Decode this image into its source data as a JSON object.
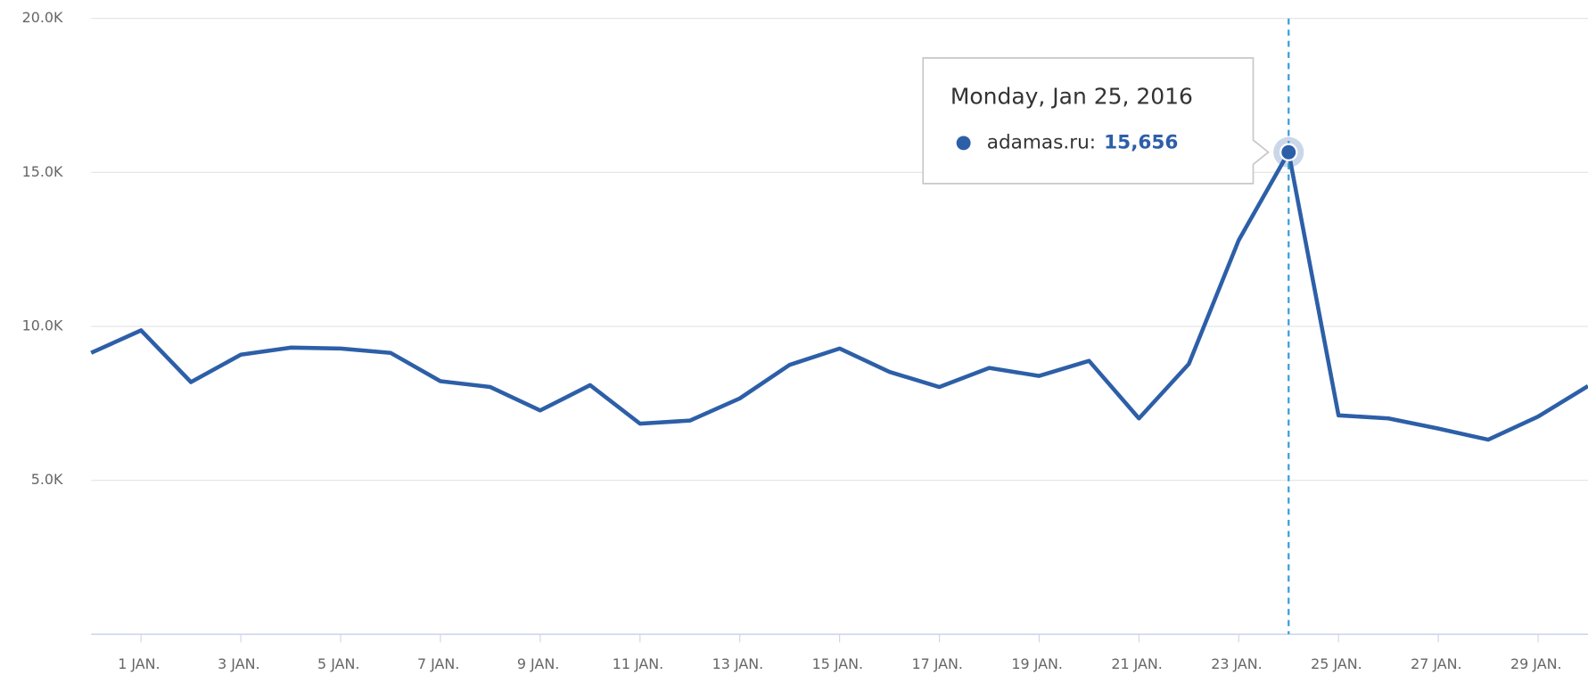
{
  "chart_data": {
    "type": "line",
    "categories": [
      null,
      "1 JAN.",
      null,
      "3 JAN.",
      null,
      "5 JAN.",
      null,
      "7 JAN.",
      null,
      "9 JAN.",
      null,
      "11 JAN.",
      null,
      "13 JAN.",
      null,
      "15 JAN.",
      null,
      "17 JAN.",
      null,
      "19 JAN.",
      null,
      "21 JAN.",
      null,
      "23 JAN.",
      null,
      "25 JAN.",
      null,
      "27 JAN.",
      null,
      "29 JAN.",
      null
    ],
    "series": [
      {
        "name": "adamas.ru",
        "color": "#2d5fa8",
        "values": [
          9140,
          9870,
          8190,
          9080,
          9310,
          9280,
          9140,
          8220,
          8030,
          7270,
          8090,
          6840,
          6940,
          7660,
          8750,
          9280,
          8520,
          8030,
          8650,
          8390,
          8880,
          7010,
          8780,
          12800,
          15656,
          7110,
          7010,
          6680,
          6320,
          7070,
          8060
        ],
        "value_labels": [
          null,
          null,
          null,
          null,
          null,
          null,
          null,
          null,
          null,
          null,
          null,
          null,
          null,
          null,
          null,
          null,
          null,
          null,
          null,
          null,
          null,
          null,
          null,
          null,
          "15,656",
          null,
          null,
          null,
          null,
          null,
          null
        ]
      }
    ],
    "tooltip": {
      "title": "Monday, Jan 25, 2016"
    },
    "ylim": [
      0,
      20000
    ],
    "yticks": [
      {
        "value": 5000,
        "label": "5.0K"
      },
      {
        "value": 10000,
        "label": "10.0K"
      },
      {
        "value": 15000,
        "label": "15.0K"
      },
      {
        "value": 20000,
        "label": "20.0K"
      }
    ],
    "grid": true
  }
}
